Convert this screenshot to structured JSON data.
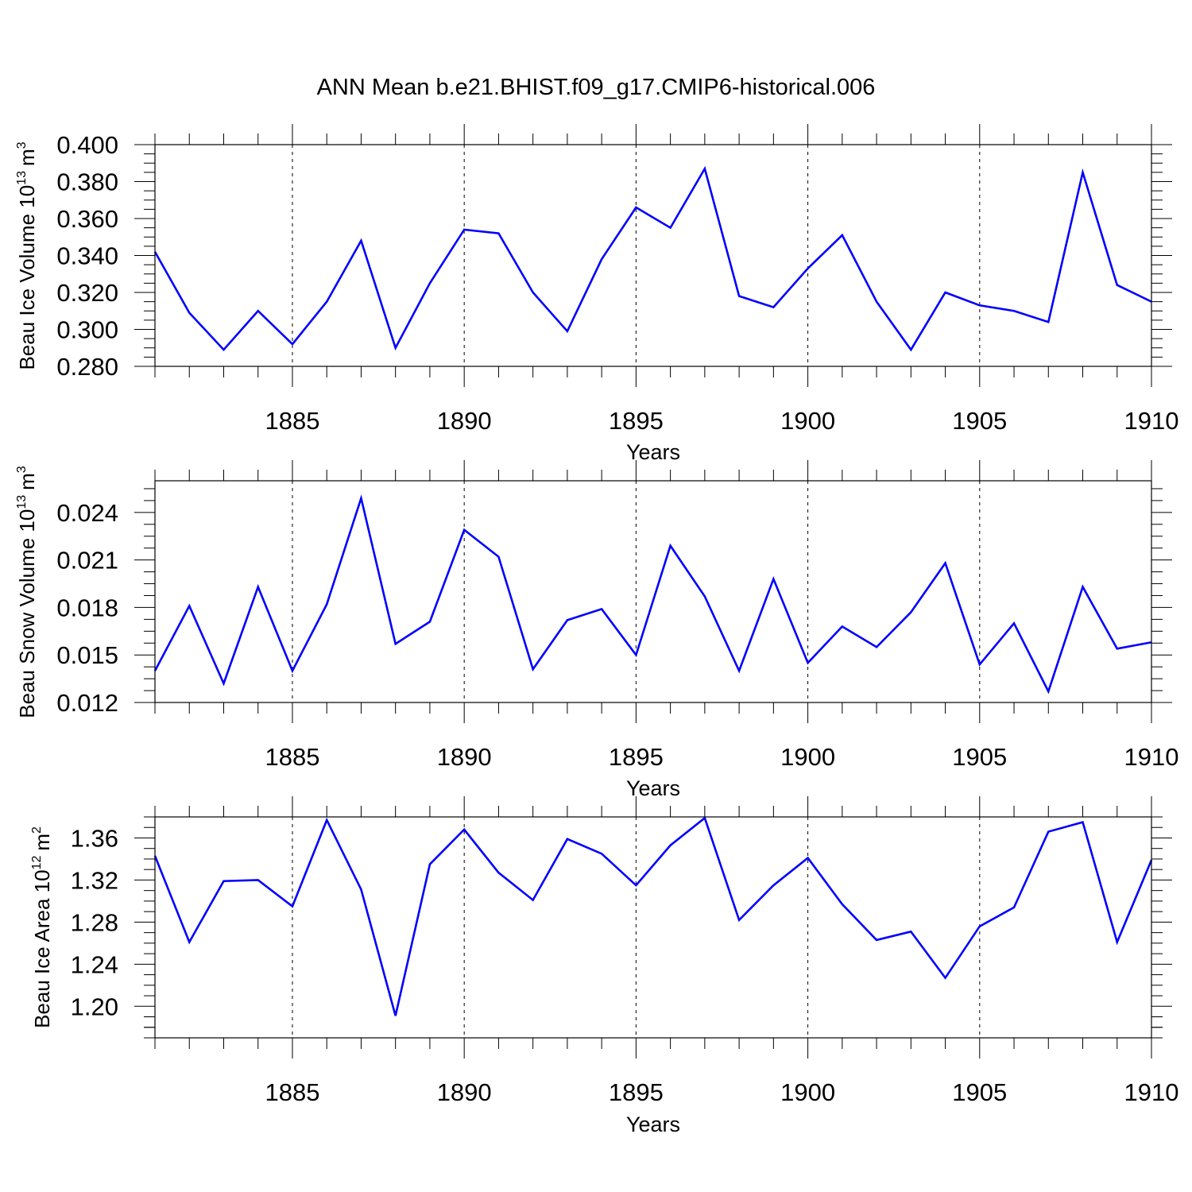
{
  "title": "ANN Mean b.e21.BHIST.f09_g17.CMIP6-historical.006",
  "colors": {
    "series": "#0000ff",
    "axes": "#000000",
    "grid": "#000000"
  },
  "chart_data": [
    {
      "type": "line",
      "ylabel": {
        "text": "Beau Ice Volume 10",
        "exponent": "13",
        "unit": "m",
        "unit_exponent": "3"
      },
      "xlabel": "Years",
      "xlim": [
        1881,
        1910
      ],
      "ylim": [
        0.28,
        0.4
      ],
      "xticks": [
        "1885",
        "1890",
        "1895",
        "1900",
        "1905",
        "1910"
      ],
      "yticks": [
        "0.280",
        "0.300",
        "0.320",
        "0.340",
        "0.360",
        "0.380",
        "0.400"
      ],
      "x": [
        1881,
        1882,
        1883,
        1884,
        1885,
        1886,
        1887,
        1888,
        1889,
        1890,
        1891,
        1892,
        1893,
        1894,
        1895,
        1896,
        1897,
        1898,
        1899,
        1900,
        1901,
        1902,
        1903,
        1904,
        1905,
        1906,
        1907,
        1908,
        1909,
        1910
      ],
      "series": [
        {
          "values": [
            0.342,
            0.309,
            0.289,
            0.31,
            0.292,
            0.315,
            0.348,
            0.29,
            0.325,
            0.354,
            0.352,
            0.32,
            0.299,
            0.338,
            0.366,
            0.355,
            0.387,
            0.318,
            0.312,
            0.333,
            0.351,
            0.315,
            0.289,
            0.32,
            0.313,
            0.31,
            0.304,
            0.385,
            0.324,
            0.315
          ]
        }
      ],
      "grid": "vertical dashed at major x ticks"
    },
    {
      "type": "line",
      "ylabel": {
        "text": "Beau Snow Volume 10",
        "exponent": "13",
        "unit": "m",
        "unit_exponent": "3"
      },
      "xlabel": "Years",
      "xlim": [
        1881,
        1910
      ],
      "ylim": [
        0.012,
        0.026
      ],
      "xticks": [
        "1885",
        "1890",
        "1895",
        "1900",
        "1905",
        "1910"
      ],
      "yticks": [
        "0.012",
        "0.015",
        "0.018",
        "0.021",
        "0.024"
      ],
      "x": [
        1881,
        1882,
        1883,
        1884,
        1885,
        1886,
        1887,
        1888,
        1889,
        1890,
        1891,
        1892,
        1893,
        1894,
        1895,
        1896,
        1897,
        1898,
        1899,
        1900,
        1901,
        1902,
        1903,
        1904,
        1905,
        1906,
        1907,
        1908,
        1909,
        1910
      ],
      "series": [
        {
          "values": [
            0.014,
            0.0181,
            0.0132,
            0.0193,
            0.014,
            0.0182,
            0.0249,
            0.0157,
            0.0171,
            0.0229,
            0.0212,
            0.0141,
            0.0172,
            0.0179,
            0.015,
            0.0219,
            0.0187,
            0.014,
            0.0198,
            0.0145,
            0.0168,
            0.0155,
            0.0177,
            0.0208,
            0.0144,
            0.017,
            0.0127,
            0.0193,
            0.0154,
            0.0158
          ]
        }
      ],
      "grid": "vertical dashed at major x ticks"
    },
    {
      "type": "line",
      "ylabel": {
        "text": "Beau Ice Area 10",
        "exponent": "12",
        "unit": "m",
        "unit_exponent": "2"
      },
      "xlabel": "Years",
      "xlim": [
        1881,
        1910
      ],
      "ylim": [
        1.17,
        1.38
      ],
      "xticks": [
        "1885",
        "1890",
        "1895",
        "1900",
        "1905",
        "1910"
      ],
      "yticks": [
        "1.20",
        "1.24",
        "1.28",
        "1.32",
        "1.36"
      ],
      "x": [
        1881,
        1882,
        1883,
        1884,
        1885,
        1886,
        1887,
        1888,
        1889,
        1890,
        1891,
        1892,
        1893,
        1894,
        1895,
        1896,
        1897,
        1898,
        1899,
        1900,
        1901,
        1902,
        1903,
        1904,
        1905,
        1906,
        1907,
        1908,
        1909,
        1910
      ],
      "series": [
        {
          "values": [
            1.343,
            1.261,
            1.319,
            1.32,
            1.295,
            1.377,
            1.311,
            1.191,
            1.335,
            1.368,
            1.327,
            1.301,
            1.359,
            1.345,
            1.315,
            1.353,
            1.379,
            1.282,
            1.315,
            1.341,
            1.297,
            1.263,
            1.271,
            1.227,
            1.276,
            1.294,
            1.366,
            1.375,
            1.261,
            1.339
          ]
        }
      ],
      "grid": "vertical dashed at major x ticks"
    }
  ]
}
